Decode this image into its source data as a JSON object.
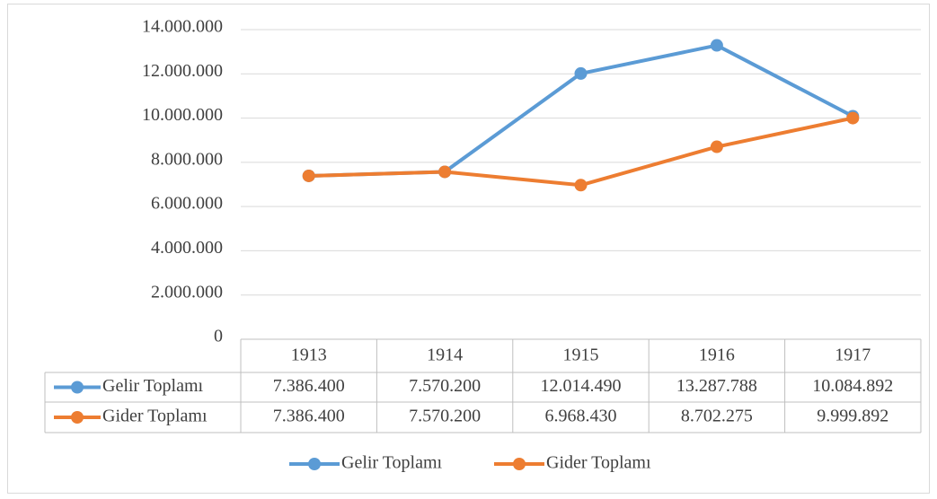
{
  "chart_data": {
    "type": "line",
    "categories": [
      "1913",
      "1914",
      "1915",
      "1916",
      "1917"
    ],
    "series": [
      {
        "name": "Gelir Toplamı",
        "color": "#5b9bd5",
        "values": [
          7386400,
          7570200,
          12014490,
          13287788,
          10084892
        ],
        "value_labels": [
          "7.386.400",
          "7.570.200",
          "12.014.490",
          "13.287.788",
          "10.084.892"
        ]
      },
      {
        "name": "Gider Toplamı",
        "color": "#ed7d31",
        "values": [
          7386400,
          7570200,
          6968430,
          8702275,
          9999892
        ],
        "value_labels": [
          "7.386.400",
          "7.570.200",
          "6.968.430",
          "8.702.275",
          "9.999.892"
        ]
      }
    ],
    "ylim": [
      0,
      14000000
    ],
    "yticks": [
      0,
      {
        "value": 2000000,
        "label": "2.000.000"
      },
      {
        "value": 4000000,
        "label": "4.000.000"
      },
      {
        "value": 6000000,
        "label": "6.000.000"
      },
      {
        "value": 8000000,
        "label": "8.000.000"
      },
      {
        "value": 10000000,
        "label": "10.000.000"
      },
      {
        "value": 12000000,
        "label": "12.000.000"
      },
      {
        "value": 14000000,
        "label": "14.000.000"
      }
    ],
    "grid": true,
    "legend": "bottom"
  }
}
